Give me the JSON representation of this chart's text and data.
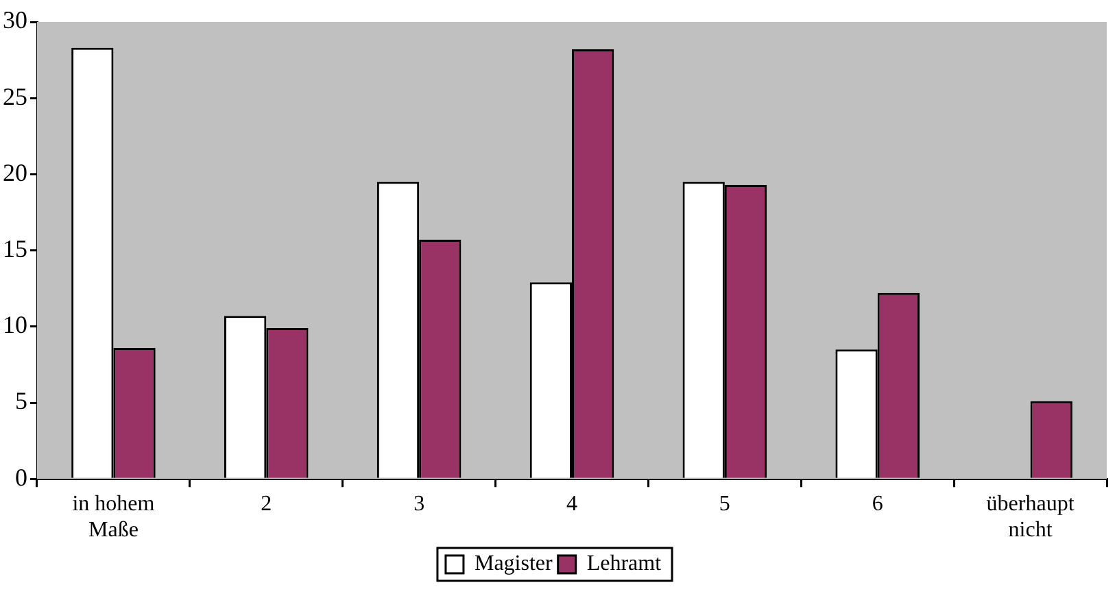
{
  "chart_data": {
    "type": "bar",
    "categories": [
      "in hohem Maße",
      "2",
      "3",
      "4",
      "5",
      "6",
      "überhaupt nicht"
    ],
    "series": [
      {
        "name": "Magister",
        "color": "#ffffff",
        "values": [
          28.3,
          10.7,
          19.5,
          12.9,
          19.5,
          8.5,
          0
        ]
      },
      {
        "name": "Lehramt",
        "color": "#993366",
        "values": [
          8.6,
          9.9,
          15.7,
          28.2,
          19.3,
          12.2,
          5.1
        ]
      }
    ],
    "ylim": [
      0,
      30
    ],
    "yticks": [
      0,
      5,
      10,
      15,
      20,
      25,
      30
    ],
    "grid": false,
    "legend": "bottom"
  }
}
